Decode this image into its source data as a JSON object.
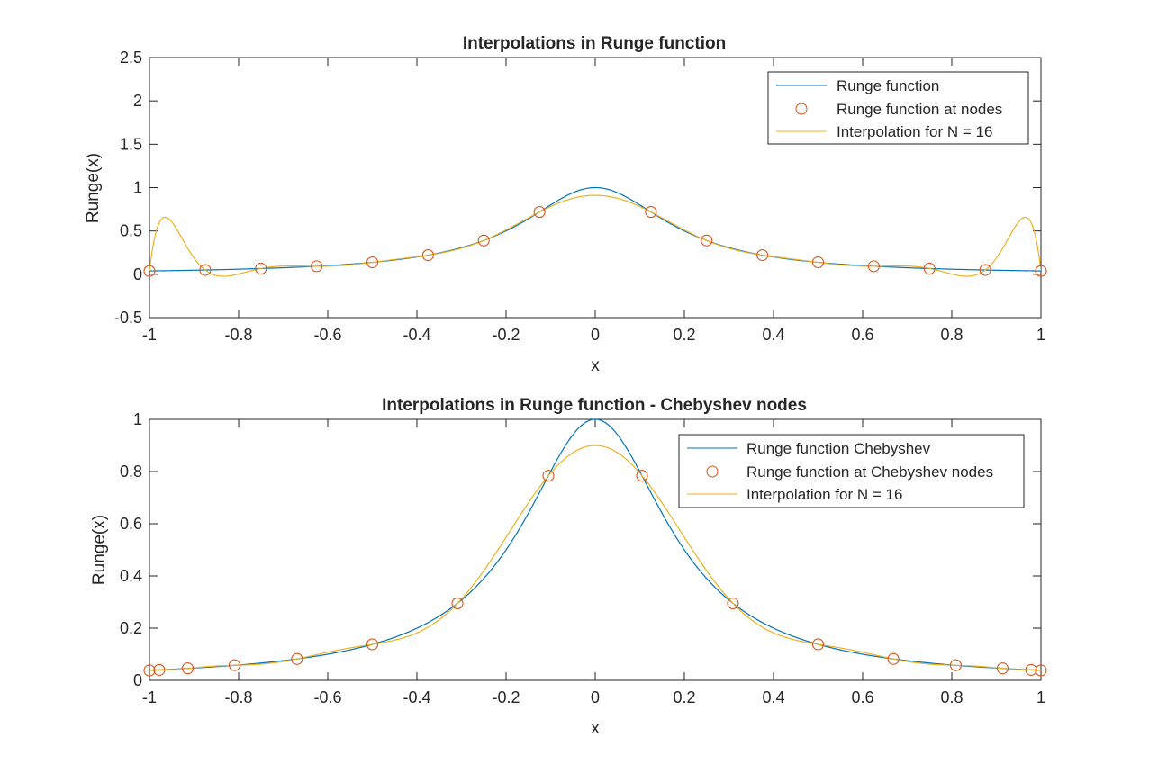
{
  "figure": {
    "background": "#ffffff"
  },
  "colors": {
    "runge": "#0072BD",
    "nodes": "#D95319",
    "interp": "#EDB120",
    "axes": "#262626"
  },
  "chart_data": [
    {
      "type": "line",
      "title": "Interpolations in Runge function",
      "xlabel": "x",
      "ylabel": "Runge(x)",
      "xlim": [
        -1,
        1
      ],
      "ylim": [
        -0.5,
        2.5
      ],
      "xticks": [
        -1,
        -0.8,
        -0.6,
        -0.4,
        -0.2,
        0,
        0.2,
        0.4,
        0.6,
        0.8,
        1
      ],
      "xtick_labels": [
        "-1",
        "-0.8",
        "-0.6",
        "-0.4",
        "-0.2",
        "0",
        "0.2",
        "0.4",
        "0.6",
        "0.8",
        "1"
      ],
      "yticks": [
        -0.5,
        0,
        0.5,
        1,
        1.5,
        2,
        2.5
      ],
      "ytick_labels": [
        "-0.5",
        "0",
        "0.5",
        "1",
        "1.5",
        "2",
        "2.5"
      ],
      "grid": false,
      "legend_position": "top-right",
      "node_kind": "equispaced",
      "N": 16,
      "series": [
        {
          "name": "Runge function",
          "kind": "line",
          "color": "#0072BD"
        },
        {
          "name": "Runge function at nodes",
          "kind": "markers",
          "color": "#D95319",
          "x": [
            -1,
            -0.875,
            -0.75,
            -0.625,
            -0.5,
            -0.375,
            -0.25,
            -0.125,
            0.125,
            0.25,
            0.375,
            0.5,
            0.625,
            0.75,
            0.875,
            1
          ],
          "y": [
            0.038,
            0.05,
            0.066,
            0.093,
            0.138,
            0.221,
            0.39,
            0.719,
            0.719,
            0.39,
            0.221,
            0.138,
            0.093,
            0.066,
            0.05,
            0.038
          ]
        },
        {
          "name": "Interpolation for N = 16",
          "kind": "line",
          "color": "#EDB120"
        }
      ]
    },
    {
      "type": "line",
      "title": "Interpolations in Runge function - Chebyshev nodes",
      "xlabel": "x",
      "ylabel": "Runge(x)",
      "xlim": [
        -1,
        1
      ],
      "ylim": [
        0,
        1
      ],
      "xticks": [
        -1,
        -0.8,
        -0.6,
        -0.4,
        -0.2,
        0,
        0.2,
        0.4,
        0.6,
        0.8,
        1
      ],
      "xtick_labels": [
        "-1",
        "-0.8",
        "-0.6",
        "-0.4",
        "-0.2",
        "0",
        "0.2",
        "0.4",
        "0.6",
        "0.8",
        "1"
      ],
      "yticks": [
        0,
        0.2,
        0.4,
        0.6,
        0.8,
        1
      ],
      "ytick_labels": [
        "0",
        "0.2",
        "0.4",
        "0.6",
        "0.8",
        "1"
      ],
      "grid": false,
      "legend_position": "top-right",
      "node_kind": "chebyshev",
      "N": 16,
      "series": [
        {
          "name": "Runge function Chebyshev",
          "kind": "line",
          "color": "#0072BD"
        },
        {
          "name": "Runge function at Chebyshev nodes",
          "kind": "markers",
          "color": "#D95319",
          "x": [
            -1,
            -0.978,
            -0.914,
            -0.809,
            -0.669,
            -0.5,
            -0.309,
            -0.105,
            0.105,
            0.309,
            0.5,
            0.669,
            0.809,
            0.914,
            0.978,
            1
          ],
          "y": [
            0.038,
            0.04,
            0.046,
            0.058,
            0.082,
            0.138,
            0.295,
            0.784,
            0.784,
            0.295,
            0.138,
            0.082,
            0.058,
            0.046,
            0.04,
            0.038
          ]
        },
        {
          "name": "Interpolation for N = 16",
          "kind": "line",
          "color": "#EDB120"
        }
      ]
    }
  ]
}
